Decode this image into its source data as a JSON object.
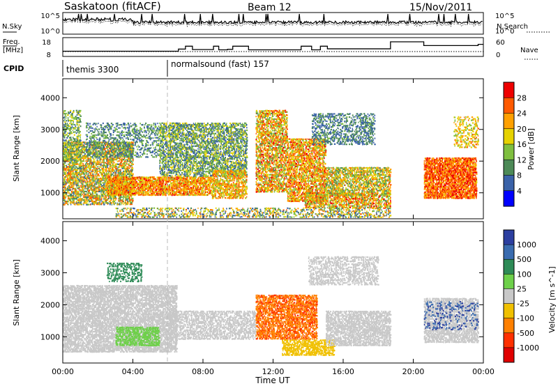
{
  "header": {
    "title": "Saskatoon (fitACF)",
    "beam": "Beam 12",
    "date": "15/Nov/2011"
  },
  "noise_panel": {
    "left_label": "N.Sky",
    "right_label": "N.Search",
    "left_ticks": [
      "10^5",
      "10^0"
    ],
    "right_ticks": [
      "10^5",
      "10^0"
    ],
    "series": [
      {
        "name": "N.Sky",
        "style": "solid"
      },
      {
        "name": "N.Search",
        "style": "dotted"
      }
    ]
  },
  "freq_panel": {
    "left_label_lines": [
      "Freq.",
      "[MHz]"
    ],
    "right_label": "Nave",
    "left_ticks": [
      "18",
      "8"
    ],
    "right_ticks": [
      "60",
      "0"
    ],
    "freq_steps": [
      {
        "t": 0.0,
        "mhz": 10.5
      },
      {
        "t": 6.6,
        "mhz": 12.2
      },
      {
        "t": 7.0,
        "mhz": 14.5
      },
      {
        "t": 7.4,
        "mhz": 11.8
      },
      {
        "t": 8.6,
        "mhz": 14.5
      },
      {
        "t": 8.9,
        "mhz": 11.6
      },
      {
        "t": 9.4,
        "mhz": 12.0
      },
      {
        "t": 9.7,
        "mhz": 14.5
      },
      {
        "t": 10.6,
        "mhz": 11.6
      },
      {
        "t": 13.6,
        "mhz": 14.5
      },
      {
        "t": 14.2,
        "mhz": 11.6
      },
      {
        "t": 14.7,
        "mhz": 14.5
      },
      {
        "t": 15.1,
        "mhz": 12.4
      },
      {
        "t": 18.7,
        "mhz": 18.0
      },
      {
        "t": 20.6,
        "mhz": 15.0
      },
      {
        "t": 23.7,
        "mhz": 16.0
      },
      {
        "t": 24.0,
        "mhz": 16.0
      }
    ],
    "nave_level": 20
  },
  "cpid": {
    "label": "CPID",
    "segments": [
      {
        "label": "themis 3300",
        "start_ut": "00:00"
      },
      {
        "label": "normalsound (fast) 157",
        "start_ut": "06:00"
      }
    ]
  },
  "chart_data": [
    {
      "type": "heatmap",
      "name": "Power",
      "xlabel": "Time UT",
      "ylabel": "Slant Range [km]",
      "x_range_hours": [
        0,
        24
      ],
      "ylim_km": [
        180,
        4600
      ],
      "yticks": [
        1000,
        2000,
        3000,
        4000
      ],
      "xticks": [
        "00:00",
        "04:00",
        "08:00",
        "12:00",
        "16:00",
        "20:00",
        "00:00"
      ],
      "data_gap_ut": [
        "18:45",
        "20:35"
      ],
      "colorbar": {
        "label": "Power [dB]",
        "ticks": [
          4,
          8,
          12,
          16,
          20,
          24,
          28
        ],
        "range": [
          0,
          30
        ],
        "colors": [
          "#0000ff",
          "#3a62a8",
          "#4d8a57",
          "#7fbf3f",
          "#e6d200",
          "#ffa000",
          "#ff5a00",
          "#ee0000"
        ]
      },
      "regions": [
        {
          "t": [
            0.0,
            4.0
          ],
          "r": [
            600,
            2600
          ],
          "value_db": [
            6,
            26
          ],
          "density": 0.55
        },
        {
          "t": [
            0.0,
            1.0
          ],
          "r": [
            2000,
            3600
          ],
          "value_db": [
            6,
            18
          ],
          "density": 0.35
        },
        {
          "t": [
            1.3,
            5.5
          ],
          "r": [
            2100,
            3200
          ],
          "value_db": [
            4,
            14
          ],
          "density": 0.3
        },
        {
          "t": [
            2.5,
            8.5
          ],
          "r": [
            900,
            1500
          ],
          "value_db": [
            14,
            28
          ],
          "density": 0.7
        },
        {
          "t": [
            5.5,
            10.5
          ],
          "r": [
            1500,
            3200
          ],
          "value_db": [
            4,
            18
          ],
          "density": 0.5
        },
        {
          "t": [
            8.5,
            10.5
          ],
          "r": [
            800,
            1700
          ],
          "value_db": [
            12,
            26
          ],
          "density": 0.55
        },
        {
          "t": [
            11.0,
            12.8
          ],
          "r": [
            1000,
            3600
          ],
          "value_db": [
            10,
            28
          ],
          "density": 0.55
        },
        {
          "t": [
            12.8,
            15.0
          ],
          "r": [
            700,
            2700
          ],
          "value_db": [
            12,
            28
          ],
          "density": 0.6
        },
        {
          "t": [
            13.8,
            18.7
          ],
          "r": [
            500,
            1000
          ],
          "value_db": [
            10,
            28
          ],
          "density": 0.55
        },
        {
          "t": [
            14.2,
            17.8
          ],
          "r": [
            2500,
            3500
          ],
          "value_db": [
            4,
            12
          ],
          "density": 0.35
        },
        {
          "t": [
            15.0,
            18.7
          ],
          "r": [
            900,
            1800
          ],
          "value_db": [
            8,
            24
          ],
          "density": 0.55
        },
        {
          "t": [
            20.6,
            23.6
          ],
          "r": [
            800,
            2100
          ],
          "value_db": [
            18,
            30
          ],
          "density": 0.75
        },
        {
          "t": [
            22.3,
            23.7
          ],
          "r": [
            2400,
            3400
          ],
          "value_db": [
            12,
            24
          ],
          "density": 0.3
        },
        {
          "t": [
            3.0,
            18.7
          ],
          "r": [
            200,
            520
          ],
          "value_db": [
            4,
            24
          ],
          "density": 0.3
        }
      ]
    },
    {
      "type": "heatmap",
      "name": "Velocity",
      "xlabel": "Time UT",
      "ylabel": "Slant Range [km]",
      "x_range_hours": [
        0,
        24
      ],
      "ylim_km": [
        180,
        4600
      ],
      "yticks": [
        1000,
        2000,
        3000,
        4000
      ],
      "xticks": [
        "00:00",
        "04:00",
        "08:00",
        "12:00",
        "16:00",
        "20:00",
        "00:00"
      ],
      "data_gap_ut": [
        "18:45",
        "20:35"
      ],
      "colorbar": {
        "label": "Velocity [m s^-1]",
        "ticks": [
          "1000",
          "500",
          "100",
          "25",
          "-25",
          "-100",
          "-500",
          "-1000"
        ],
        "colors": [
          "#2c3fa0",
          "#3a6cb0",
          "#2e8b57",
          "#6ed04a",
          "#c8c8c8",
          "#f0c000",
          "#ff8000",
          "#ff3000",
          "#e00000"
        ]
      },
      "regions": [
        {
          "t": [
            0.0,
            6.5
          ],
          "r": [
            500,
            2600
          ],
          "value_class": "25/-25",
          "density": 0.65
        },
        {
          "t": [
            2.5,
            4.5
          ],
          "r": [
            2700,
            3300
          ],
          "value_class": "100..500",
          "density": 0.35
        },
        {
          "t": [
            3.0,
            5.5
          ],
          "r": [
            700,
            1300
          ],
          "value_class": "25..100",
          "density": 0.6
        },
        {
          "t": [
            6.0,
            11.0
          ],
          "r": [
            900,
            1800
          ],
          "value_class": "25/-25",
          "density": 0.45
        },
        {
          "t": [
            11.0,
            14.5
          ],
          "r": [
            900,
            2300
          ],
          "value_class": "-100..-500",
          "density": 0.6
        },
        {
          "t": [
            12.5,
            15.5
          ],
          "r": [
            400,
            900
          ],
          "value_class": "-25..-100",
          "density": 0.55
        },
        {
          "t": [
            15.0,
            18.7
          ],
          "r": [
            700,
            1800
          ],
          "value_class": "25/-25",
          "density": 0.6
        },
        {
          "t": [
            14.0,
            18.0
          ],
          "r": [
            2600,
            3500
          ],
          "value_class": "25/-25",
          "density": 0.4
        },
        {
          "t": [
            20.6,
            23.7
          ],
          "r": [
            800,
            2200
          ],
          "value_class": "25/-25",
          "density": 0.6
        },
        {
          "t": [
            20.6,
            23.7
          ],
          "r": [
            1200,
            2100
          ],
          "value_class": "100..1000",
          "density": 0.15
        }
      ]
    }
  ]
}
